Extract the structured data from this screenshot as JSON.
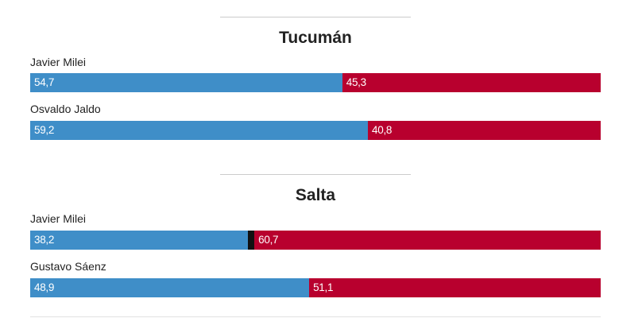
{
  "colors": {
    "first": "#3f8ec8",
    "other": "#111111",
    "second": "#b8002e"
  },
  "chart_data": [
    {
      "type": "bar",
      "title": "Tucumán",
      "stacked": true,
      "categories": [
        "Javier Milei",
        "Osvaldo Jaldo"
      ],
      "series": [
        {
          "values": [
            54.7,
            59.2
          ],
          "labels": [
            "54,7",
            "59,2"
          ]
        },
        {
          "values": [
            0,
            0
          ],
          "labels": [
            "",
            ""
          ]
        },
        {
          "values": [
            45.3,
            40.8
          ],
          "labels": [
            "45,3",
            "40,8"
          ]
        }
      ]
    },
    {
      "type": "bar",
      "title": "Salta",
      "stacked": true,
      "categories": [
        "Javier Milei",
        "Gustavo Sáenz"
      ],
      "series": [
        {
          "values": [
            38.2,
            48.9
          ],
          "labels": [
            "38,2",
            "48,9"
          ]
        },
        {
          "values": [
            1.1,
            0
          ],
          "labels": [
            "",
            ""
          ]
        },
        {
          "values": [
            60.7,
            51.1
          ],
          "labels": [
            "60,7",
            "51,1"
          ]
        }
      ]
    }
  ]
}
